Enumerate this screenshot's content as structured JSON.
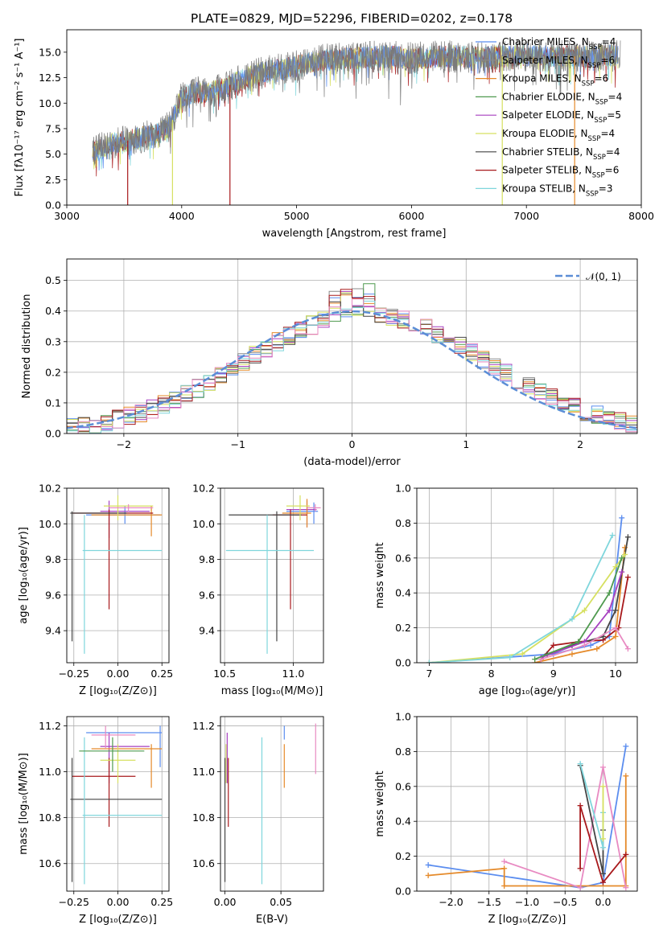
{
  "title": "PLATE=0829, MJD=52296, FIBERID=0202, z=0.178",
  "palette": {
    "Chabrier MILES": "#5b8def",
    "Salpeter MILES": "#8a8a8a",
    "Kroupa MILES": "#e58a2a",
    "Chabrier ELODIE": "#4f9a4f",
    "Salpeter ELODIE": "#a63fbf",
    "Kroupa ELODIE": "#d6e060",
    "Chabrier STELIB": "#444444",
    "Salpeter STELIB": "#a8191c",
    "Kroupa STELIB": "#7fd6dc",
    "pink": "#e88ac2",
    "gauss": "#5b8dd6"
  },
  "legend_top": [
    {
      "label": "Chabrier MILES, N",
      "sub": "SSP",
      "val": "=4",
      "color": "#5b8def"
    },
    {
      "label": "Salpeter MILES, N",
      "sub": "SSP",
      "val": "=6",
      "color": "#8a8a8a"
    },
    {
      "label": "Kroupa MILES, N",
      "sub": "SSP",
      "val": "=6",
      "color": "#e58a2a"
    },
    {
      "label": "Chabrier ELODIE, N",
      "sub": "SSP",
      "val": "=4",
      "color": "#4f9a4f"
    },
    {
      "label": "Salpeter ELODIE, N",
      "sub": "SSP",
      "val": "=5",
      "color": "#a63fbf"
    },
    {
      "label": "Kroupa ELODIE, N",
      "sub": "SSP",
      "val": "=4",
      "color": "#d6e060"
    },
    {
      "label": "Chabrier STELIB, N",
      "sub": "SSP",
      "val": "=4",
      "color": "#444444"
    },
    {
      "label": "Salpeter STELIB, N",
      "sub": "SSP",
      "val": "=6",
      "color": "#a8191c"
    },
    {
      "label": "Kroupa STELIB, N",
      "sub": "SSP",
      "val": "=3",
      "color": "#7fd6dc"
    }
  ],
  "chart_data": [
    {
      "type": "line",
      "id": "spectrum",
      "xlabel": "wavelength [Angstrom, rest frame]",
      "ylabel": "Flux [fλ10⁻¹⁷ erg cm⁻² s⁻¹ A⁻¹]",
      "xlim": [
        3000,
        8000
      ],
      "ylim": [
        0,
        17.2
      ],
      "xticks": [
        3000,
        4000,
        5000,
        6000,
        7000,
        8000
      ],
      "yticks": [
        0.0,
        2.5,
        5.0,
        7.5,
        10.0,
        12.5,
        15.0
      ],
      "ytick_labels": [
        "0.0",
        "2.5",
        "5.0",
        "7.5",
        "10.0",
        "12.5",
        "15.0"
      ],
      "continuum": [
        [
          3220,
          5.2
        ],
        [
          3400,
          6.0
        ],
        [
          3600,
          6.5
        ],
        [
          3800,
          7.0
        ],
        [
          3900,
          7.8
        ],
        [
          3960,
          9.5
        ],
        [
          4000,
          10.5
        ],
        [
          4100,
          11.0
        ],
        [
          4300,
          11.2
        ],
        [
          4500,
          12.2
        ],
        [
          4700,
          13.0
        ],
        [
          5000,
          13.6
        ],
        [
          5200,
          14.2
        ],
        [
          5500,
          14.4
        ],
        [
          5800,
          14.6
        ],
        [
          6000,
          14.4
        ],
        [
          6300,
          14.6
        ],
        [
          6600,
          14.5
        ],
        [
          6800,
          14.6
        ],
        [
          7000,
          14.7
        ],
        [
          7300,
          14.6
        ],
        [
          7600,
          14.6
        ],
        [
          7820,
          14.7
        ]
      ],
      "drop_features": [
        {
          "wavelength": 3530,
          "color": "#a8191c"
        },
        {
          "wavelength": 3920,
          "color": "#d6e060"
        },
        {
          "wavelength": 4420,
          "color": "#a8191c"
        },
        {
          "wavelength": 6790,
          "color": "#d6e060"
        },
        {
          "wavelength": 7420,
          "color": "#e58a2a"
        }
      ]
    },
    {
      "type": "histogram",
      "id": "residuals",
      "xlabel": "(data-model)/error",
      "ylabel": "Normed distribution",
      "xlim": [
        -2.5,
        2.5
      ],
      "ylim": [
        0,
        0.57
      ],
      "xticks": [
        -2,
        -1,
        0,
        1,
        2
      ],
      "xtick_labels": [
        "−2",
        "−1",
        "0",
        "1",
        "2"
      ],
      "yticks": [
        0.0,
        0.1,
        0.2,
        0.3,
        0.4,
        0.5
      ],
      "ytick_labels": [
        "0.0",
        "0.1",
        "0.2",
        "0.3",
        "0.4",
        "0.5"
      ],
      "bin_width": 0.1,
      "gauss_label": "𝒩(0, 1)"
    },
    {
      "type": "scatter",
      "id": "age_vs_Z",
      "xlabel": "Z [log₁₀(Z/Z⊙)]",
      "ylabel": "age  [log₁₀(age/yr)]",
      "xlim": [
        -0.29,
        0.29
      ],
      "ylim": [
        9.22,
        10.2
      ],
      "xticks": [
        -0.25,
        0.0,
        0.25
      ],
      "xtick_labels": [
        "−0.25",
        "0.00",
        "0.25"
      ],
      "yticks": [
        9.4,
        9.6,
        9.8,
        10.0,
        10.2
      ],
      "ytick_labels": [
        "9.4",
        "9.6",
        "9.8",
        "10.0",
        "10.2"
      ],
      "points": [
        {
          "x": 0.04,
          "y": 10.05,
          "xlo": -0.18,
          "xhi": 0.24,
          "ylo": 10.0,
          "yhi": 10.1,
          "color": "#5b8def"
        },
        {
          "x": -0.05,
          "y": 10.07,
          "xlo": -0.1,
          "xhi": 0.18,
          "ylo": 9.92,
          "yhi": 10.13,
          "color": "#a63fbf"
        },
        {
          "x": 0.19,
          "y": 10.05,
          "xlo": -0.15,
          "xhi": 0.25,
          "ylo": 9.93,
          "yhi": 10.1,
          "color": "#e58a2a"
        },
        {
          "x": -0.05,
          "y": 10.06,
          "xlo": -0.26,
          "xhi": 0.2,
          "ylo": 9.52,
          "yhi": 10.08,
          "color": "#a8191c"
        },
        {
          "x": -0.26,
          "y": 10.06,
          "xlo": -0.27,
          "xhi": 0.05,
          "ylo": 9.34,
          "yhi": 10.07,
          "color": "#444444"
        },
        {
          "x": -0.19,
          "y": 9.85,
          "xlo": -0.2,
          "xhi": 0.25,
          "ylo": 9.27,
          "yhi": 10.05,
          "color": "#7fd6dc"
        },
        {
          "x": 0.0,
          "y": 10.1,
          "xlo": -0.08,
          "xhi": 0.2,
          "ylo": 10.02,
          "yhi": 10.16,
          "color": "#d6e060"
        },
        {
          "x": 0.06,
          "y": 10.09,
          "xlo": -0.05,
          "xhi": 0.2,
          "ylo": 10.07,
          "yhi": 10.11,
          "color": "#e88ac2"
        }
      ]
    },
    {
      "type": "scatter",
      "id": "age_vs_mass",
      "xlabel": "mass [log₁₀(M/M⊙)]",
      "ylabel": "",
      "xlim": [
        10.47,
        11.22
      ],
      "ylim": [
        9.22,
        10.2
      ],
      "xticks": [
        10.5,
        11.0
      ],
      "xtick_labels": [
        "10.5",
        "11.0"
      ],
      "yticks": [
        9.4,
        9.6,
        9.8,
        10.0,
        10.2
      ],
      "ytick_labels": [
        "9.4",
        "9.6",
        "9.8",
        "10.0",
        "10.2"
      ],
      "points": [
        {
          "x": 11.15,
          "y": 10.07,
          "xlo": 10.95,
          "xhi": 11.18,
          "ylo": 10.0,
          "yhi": 10.12,
          "color": "#5b8def"
        },
        {
          "x": 11.1,
          "y": 10.08,
          "xlo": 10.95,
          "xhi": 11.17,
          "ylo": 9.98,
          "yhi": 10.13,
          "color": "#a63fbf"
        },
        {
          "x": 11.1,
          "y": 10.06,
          "xlo": 10.92,
          "xhi": 11.13,
          "ylo": 9.98,
          "yhi": 10.14,
          "color": "#e58a2a"
        },
        {
          "x": 10.98,
          "y": 10.05,
          "xlo": 10.85,
          "xhi": 11.1,
          "ylo": 9.52,
          "yhi": 10.08,
          "color": "#a8191c"
        },
        {
          "x": 10.88,
          "y": 10.05,
          "xlo": 10.53,
          "xhi": 11.06,
          "ylo": 9.34,
          "yhi": 10.07,
          "color": "#444444"
        },
        {
          "x": 10.81,
          "y": 9.85,
          "xlo": 10.51,
          "xhi": 11.15,
          "ylo": 9.27,
          "yhi": 10.05,
          "color": "#7fd6dc"
        },
        {
          "x": 11.05,
          "y": 10.1,
          "xlo": 10.95,
          "xhi": 11.12,
          "ylo": 10.02,
          "yhi": 10.16,
          "color": "#d6e060"
        },
        {
          "x": 11.16,
          "y": 10.09,
          "xlo": 11.1,
          "xhi": 11.2,
          "ylo": 10.07,
          "yhi": 10.11,
          "color": "#e88ac2"
        }
      ]
    },
    {
      "type": "line",
      "id": "weight_vs_age",
      "xlabel": "age  [log₁₀(age/yr)]",
      "ylabel": "mass weight",
      "xlim": [
        6.8,
        10.35
      ],
      "ylim": [
        0,
        1.0
      ],
      "xticks": [
        7,
        8,
        9,
        10
      ],
      "xtick_labels": [
        "7",
        "8",
        "9",
        "10"
      ],
      "yticks": [
        0.0,
        0.2,
        0.4,
        0.6,
        0.8,
        1.0
      ],
      "ytick_labels": [
        "0.0",
        "0.2",
        "0.4",
        "0.6",
        "0.8",
        "1.0"
      ],
      "series": [
        {
          "color": "#5b8def",
          "x": [
            7.0,
            9.0,
            9.6,
            9.9,
            10.1
          ],
          "y": [
            0.0,
            0.05,
            0.1,
            0.15,
            0.83
          ]
        },
        {
          "color": "#e58a2a",
          "x": [
            8.7,
            9.3,
            9.7,
            10.0,
            10.15
          ],
          "y": [
            0.0,
            0.05,
            0.08,
            0.15,
            0.66
          ]
        },
        {
          "color": "#a8191c",
          "x": [
            8.8,
            9.0,
            9.4,
            9.8,
            10.05,
            10.2
          ],
          "y": [
            0.02,
            0.1,
            0.12,
            0.13,
            0.2,
            0.49
          ]
        },
        {
          "color": "#444444",
          "x": [
            8.9,
            9.3,
            9.8,
            10.0,
            10.2
          ],
          "y": [
            0.05,
            0.1,
            0.15,
            0.3,
            0.72
          ]
        },
        {
          "color": "#a63fbf",
          "x": [
            8.8,
            9.5,
            9.9,
            10.1
          ],
          "y": [
            0.03,
            0.12,
            0.3,
            0.52
          ]
        },
        {
          "color": "#d6e060",
          "x": [
            7.0,
            8.5,
            9.5,
            10.0,
            10.15
          ],
          "y": [
            0.0,
            0.05,
            0.3,
            0.55,
            0.62
          ]
        },
        {
          "color": "#7fd6dc",
          "x": [
            7.0,
            8.3,
            9.3,
            9.95
          ],
          "y": [
            0.0,
            0.03,
            0.25,
            0.73
          ]
        },
        {
          "color": "#e88ac2",
          "x": [
            8.8,
            9.5,
            10.0,
            10.2
          ],
          "y": [
            0.02,
            0.1,
            0.2,
            0.08
          ]
        },
        {
          "color": "#4f9a4f",
          "x": [
            8.7,
            9.4,
            9.9,
            10.1
          ],
          "y": [
            0.02,
            0.12,
            0.4,
            0.6
          ]
        }
      ]
    },
    {
      "type": "scatter",
      "id": "mass_vs_Z",
      "xlabel": "Z [log₁₀(Z/Z⊙)]",
      "ylabel": "mass [log₁₀(M/M⊙)]",
      "xlim": [
        -0.29,
        0.29
      ],
      "ylim": [
        10.48,
        11.24
      ],
      "xticks": [
        -0.25,
        0.0,
        0.25
      ],
      "xtick_labels": [
        "−0.25",
        "0.00",
        "0.25"
      ],
      "yticks": [
        10.6,
        10.8,
        11.0,
        11.2
      ],
      "ytick_labels": [
        "10.6",
        "10.8",
        "11.0",
        "11.2"
      ],
      "points": [
        {
          "x": 0.24,
          "y": 11.17,
          "xlo": -0.18,
          "xhi": 0.25,
          "ylo": 11.02,
          "yhi": 11.2,
          "color": "#5b8def"
        },
        {
          "x": -0.05,
          "y": 11.11,
          "xlo": -0.1,
          "xhi": 0.18,
          "ylo": 10.95,
          "yhi": 11.17,
          "color": "#a63fbf"
        },
        {
          "x": 0.19,
          "y": 11.1,
          "xlo": -0.15,
          "xhi": 0.25,
          "ylo": 10.93,
          "yhi": 11.12,
          "color": "#e58a2a"
        },
        {
          "x": -0.05,
          "y": 10.98,
          "xlo": -0.26,
          "xhi": 0.1,
          "ylo": 10.76,
          "yhi": 11.06,
          "color": "#a8191c"
        },
        {
          "x": -0.26,
          "y": 10.88,
          "xlo": -0.27,
          "xhi": 0.25,
          "ylo": 10.52,
          "yhi": 11.06,
          "color": "#444444"
        },
        {
          "x": -0.19,
          "y": 10.81,
          "xlo": -0.2,
          "xhi": 0.25,
          "ylo": 10.51,
          "yhi": 11.15,
          "color": "#7fd6dc"
        },
        {
          "x": 0.0,
          "y": 11.05,
          "xlo": -0.1,
          "xhi": 0.1,
          "ylo": 10.95,
          "yhi": 11.12,
          "color": "#d6e060"
        },
        {
          "x": -0.07,
          "y": 11.16,
          "xlo": -0.15,
          "xhi": 0.1,
          "ylo": 11.1,
          "yhi": 11.2,
          "color": "#e88ac2"
        },
        {
          "x": -0.03,
          "y": 11.09,
          "xlo": -0.22,
          "xhi": 0.15,
          "ylo": 11.0,
          "yhi": 11.15,
          "color": "#4f9a4f"
        }
      ]
    },
    {
      "type": "scatter",
      "id": "mass_vs_ebv",
      "xlabel": "E(B-V)",
      "ylabel": "",
      "xlim": [
        -0.004,
        0.088
      ],
      "ylim": [
        10.48,
        11.24
      ],
      "xticks": [
        0.0,
        0.05
      ],
      "xtick_labels": [
        "0.00",
        "0.05"
      ],
      "yticks": [
        10.6,
        10.8,
        11.0,
        11.2
      ],
      "ytick_labels": [
        "10.6",
        "10.8",
        "11.0",
        "11.2"
      ],
      "points": [
        {
          "x": 0.0,
          "y": 10.88,
          "ylo": 10.52,
          "yhi": 11.06,
          "color": "#444444"
        },
        {
          "x": 0.001,
          "y": 11.05,
          "ylo": 10.95,
          "yhi": 11.12,
          "color": "#d6e060"
        },
        {
          "x": 0.002,
          "y": 11.11,
          "ylo": 10.95,
          "yhi": 11.17,
          "color": "#a63fbf"
        },
        {
          "x": 0.003,
          "y": 10.98,
          "ylo": 10.76,
          "yhi": 11.06,
          "color": "#a8191c"
        },
        {
          "x": 0.033,
          "y": 10.81,
          "ylo": 10.51,
          "yhi": 11.15,
          "color": "#7fd6dc"
        },
        {
          "x": 0.053,
          "y": 11.1,
          "ylo": 10.93,
          "yhi": 11.12,
          "color": "#e58a2a"
        },
        {
          "x": 0.053,
          "y": 11.17,
          "ylo": 11.14,
          "yhi": 11.2,
          "color": "#5b8def"
        },
        {
          "x": 0.081,
          "y": 11.16,
          "ylo": 10.99,
          "yhi": 11.21,
          "color": "#e88ac2"
        }
      ]
    },
    {
      "type": "line",
      "id": "weight_vs_Z",
      "xlabel": "Z [log₁₀(Z/Z⊙)]",
      "ylabel": "mass weight",
      "xlim": [
        -2.45,
        0.45
      ],
      "ylim": [
        0,
        1.0
      ],
      "xticks": [
        -2.0,
        -1.5,
        -1.0,
        -0.5,
        0.0
      ],
      "xtick_labels": [
        "−2.0",
        "−1.5",
        "−1.0",
        "−0.5",
        "0.0"
      ],
      "yticks": [
        0.0,
        0.2,
        0.4,
        0.6,
        0.8,
        1.0
      ],
      "ytick_labels": [
        "0.0",
        "0.2",
        "0.4",
        "0.6",
        "0.8",
        "1.0"
      ],
      "series": [
        {
          "color": "#5b8def",
          "x": [
            -2.3,
            -0.3,
            0.0,
            0.3
          ],
          "y": [
            0.15,
            0.02,
            0.05,
            0.83
          ]
        },
        {
          "color": "#e58a2a",
          "x": [
            -2.3,
            -1.3,
            -1.3,
            0.3,
            0.3
          ],
          "y": [
            0.09,
            0.13,
            0.03,
            0.03,
            0.66
          ]
        },
        {
          "color": "#e88ac2",
          "x": [
            -1.3,
            -0.3,
            0.0,
            0.3
          ],
          "y": [
            0.17,
            0.02,
            0.71,
            0.02
          ]
        },
        {
          "color": "#a8191c",
          "x": [
            -0.3,
            -0.3,
            0.0,
            0.3
          ],
          "y": [
            0.13,
            0.49,
            0.05,
            0.21
          ]
        },
        {
          "color": "#444444",
          "x": [
            -0.3,
            0.0,
            0.0
          ],
          "y": [
            0.72,
            0.1,
            0.35
          ]
        },
        {
          "color": "#7fd6dc",
          "x": [
            -0.3,
            0.0,
            0.0
          ],
          "y": [
            0.73,
            0.25,
            0.45
          ]
        },
        {
          "color": "#d6e060",
          "x": [
            0.0,
            0.0
          ],
          "y": [
            0.6,
            0.3
          ]
        }
      ]
    }
  ]
}
